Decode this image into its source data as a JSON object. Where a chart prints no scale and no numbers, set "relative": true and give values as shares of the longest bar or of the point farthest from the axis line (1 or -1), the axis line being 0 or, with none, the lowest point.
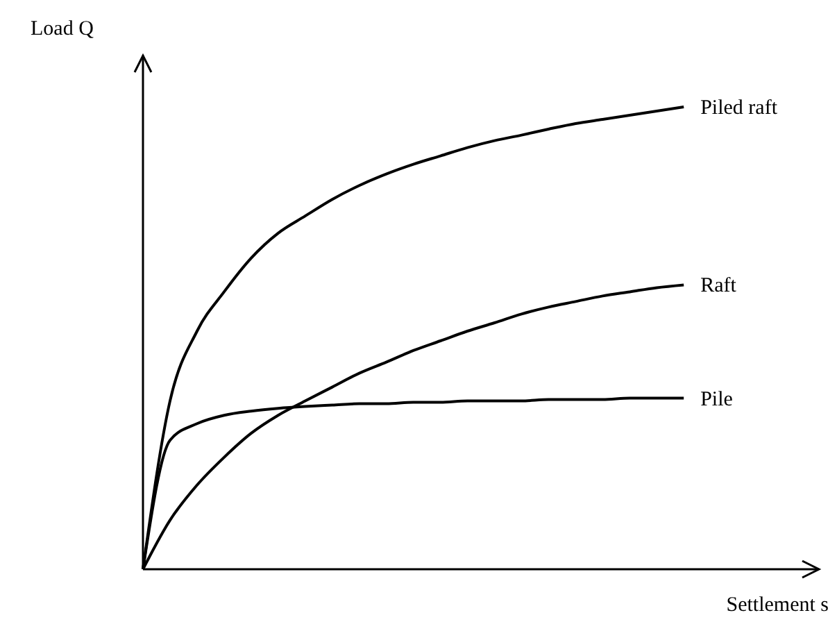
{
  "chart_data": {
    "type": "line",
    "relative": true,
    "xlabel": "Settlement s",
    "ylabel": "Load Q",
    "marker": "none",
    "line_style": "solid",
    "grid": false,
    "legend": false,
    "categories": [
      null,
      null,
      null,
      null,
      null,
      null,
      null,
      null,
      null,
      null,
      null,
      null,
      null,
      null,
      null,
      null,
      null,
      null,
      null,
      null,
      null,
      null,
      null,
      null,
      null,
      null
    ],
    "series": [
      {
        "name": "Piled raft",
        "color": "#000000",
        "values": [
          0,
          0.364,
          0.515,
          0.6,
          0.673,
          0.727,
          0.764,
          0.8,
          0.83,
          0.855,
          0.876,
          0.894,
          0.912,
          0.927,
          0.939,
          0.952,
          0.964,
          0.973,
          0.982,
          0.991,
          1,
          null,
          null,
          null,
          null,
          null
        ]
      },
      {
        "name": "Raft",
        "color": "#000000",
        "values": [
          0,
          0.106,
          0.182,
          0.242,
          0.294,
          0.333,
          0.364,
          0.394,
          0.424,
          0.448,
          0.473,
          0.494,
          0.515,
          0.533,
          0.552,
          0.567,
          0.579,
          0.591,
          0.6,
          0.609,
          0.615,
          null,
          null,
          null,
          null,
          null
        ]
      },
      {
        "name": "Pile",
        "color": "#000000",
        "values": [
          0,
          0.279,
          0.315,
          0.333,
          0.342,
          0.348,
          0.352,
          0.355,
          0.358,
          0.358,
          0.361,
          0.361,
          0.364,
          0.364,
          0.364,
          0.367,
          0.367,
          0.367,
          0.37,
          0.37,
          0.37,
          null,
          null,
          null,
          null,
          null
        ]
      }
    ]
  }
}
